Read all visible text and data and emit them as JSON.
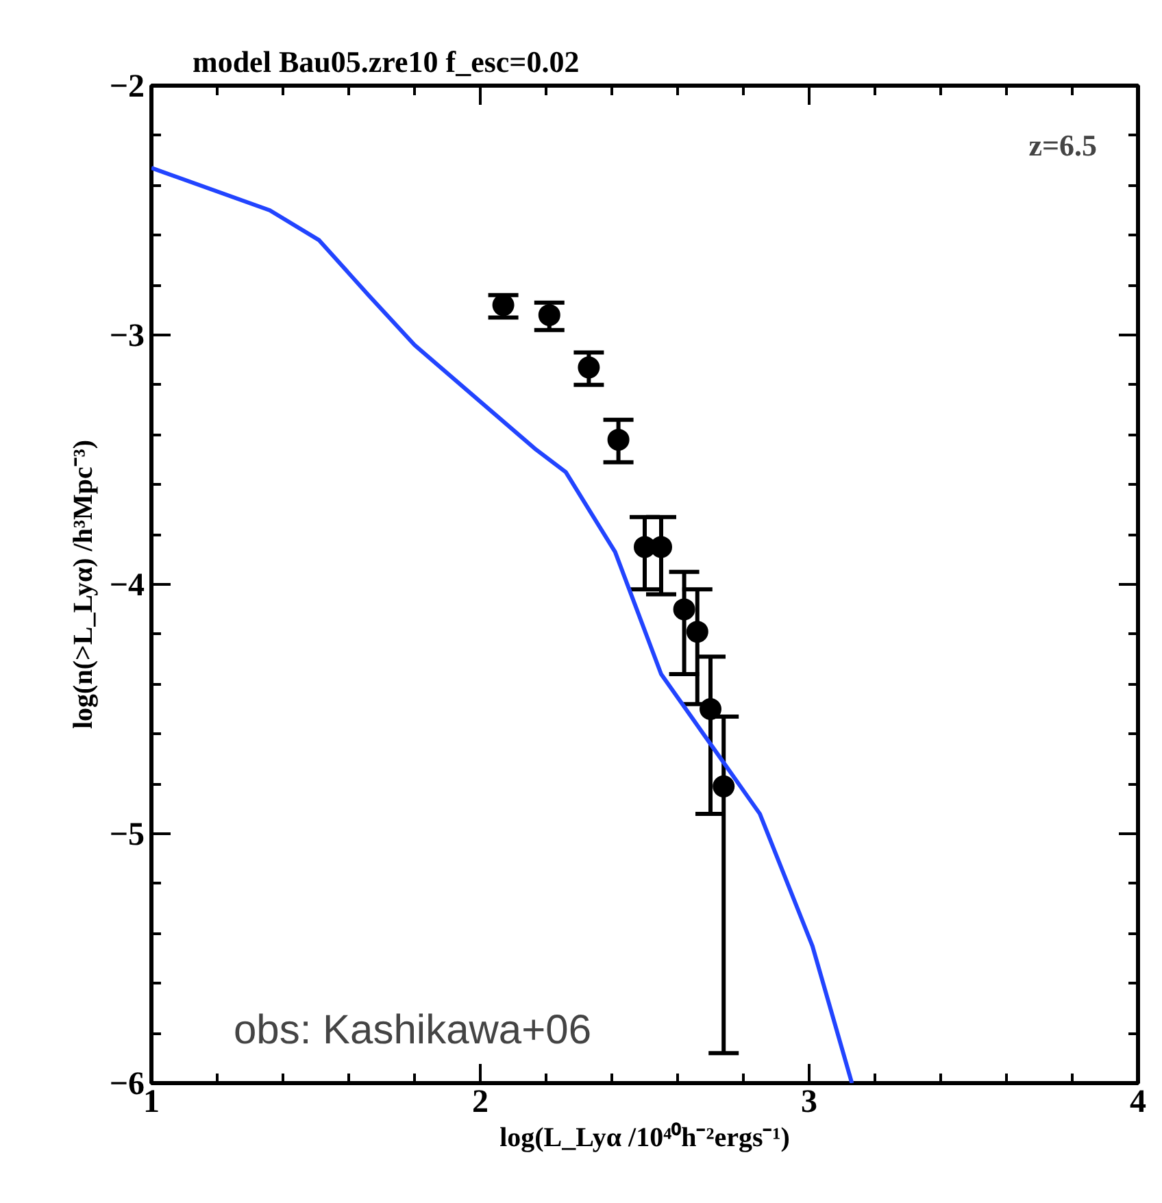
{
  "chart_data": {
    "type": "scatter",
    "title": "model Bau05.zre10   f_esc=0.02",
    "xlabel": "log(L_Lyα /10⁴⁰h⁻²ergs⁻¹)",
    "ylabel": "log(n(>L_Lyα) /h³Mpc⁻³)",
    "annotations": [
      "z=6.5",
      "obs: Kashikawa+06"
    ],
    "xlim": [
      1,
      4
    ],
    "ylim": [
      -6,
      -2
    ],
    "xticks": [
      1,
      {
        "value": 1.2,
        "label": null
      },
      {
        "value": 1.4,
        "label": null
      },
      {
        "value": 1.6,
        "label": null
      },
      {
        "value": 1.8,
        "label": null
      },
      2,
      {
        "value": 2.2,
        "label": null
      },
      {
        "value": 2.4,
        "label": null
      },
      {
        "value": 2.6,
        "label": null
      },
      {
        "value": 2.8,
        "label": null
      },
      3,
      {
        "value": 3.2,
        "label": null
      },
      {
        "value": 3.4,
        "label": null
      },
      {
        "value": 3.6,
        "label": null
      },
      {
        "value": 3.8,
        "label": null
      },
      4
    ],
    "yticks": [
      {
        "value": -6,
        "label": "−6"
      },
      {
        "value": -5.8,
        "label": null
      },
      {
        "value": -5.6,
        "label": null
      },
      {
        "value": -5.4,
        "label": null
      },
      {
        "value": -5.2,
        "label": null
      },
      {
        "value": -5,
        "label": "−5"
      },
      {
        "value": -4.8,
        "label": null
      },
      {
        "value": -4.6,
        "label": null
      },
      {
        "value": -4.4,
        "label": null
      },
      {
        "value": -4.2,
        "label": null
      },
      {
        "value": -4,
        "label": "−4"
      },
      {
        "value": -3.8,
        "label": null
      },
      {
        "value": -3.6,
        "label": null
      },
      {
        "value": -3.4,
        "label": null
      },
      {
        "value": -3.2,
        "label": null
      },
      {
        "value": -3,
        "label": "−3"
      },
      {
        "value": -2.8,
        "label": null
      },
      {
        "value": -2.6,
        "label": null
      },
      {
        "value": -2.4,
        "label": null
      },
      {
        "value": -2.2,
        "label": null
      },
      {
        "value": -2,
        "label": "−2"
      }
    ],
    "grid": false,
    "series": [
      {
        "type": "line",
        "color": "#2244ff",
        "line_style": "solid",
        "x": [
          1.0,
          1.36,
          1.51,
          1.66,
          1.8,
          2.17,
          2.26,
          2.41,
          2.55,
          2.85,
          3.01,
          3.13
        ],
        "values": [
          -2.33,
          -2.5,
          -2.62,
          -2.84,
          -3.04,
          -3.46,
          -3.55,
          -3.87,
          -4.36,
          -4.92,
          -5.45,
          -6.0
        ]
      },
      {
        "type": "scatter",
        "color": "#000000",
        "marker": "circle",
        "x": [
          2.07,
          2.21,
          2.33,
          2.42,
          2.5,
          2.55,
          2.62,
          2.66,
          2.7,
          2.74
        ],
        "values": [
          -2.88,
          -2.92,
          -3.13,
          -3.42,
          -3.85,
          -3.85,
          -4.1,
          -4.19,
          -4.5,
          -4.81
        ],
        "errors": [
          [
            -2.93,
            -2.84
          ],
          [
            -2.98,
            -2.87
          ],
          [
            -3.2,
            -3.07
          ],
          [
            -3.51,
            -3.34
          ],
          [
            -4.02,
            -3.73
          ],
          [
            -4.04,
            -3.73
          ],
          [
            -4.36,
            -3.95
          ],
          [
            -4.48,
            -4.02
          ],
          [
            -4.92,
            -4.29
          ],
          [
            -5.88,
            -4.53
          ]
        ]
      }
    ]
  }
}
